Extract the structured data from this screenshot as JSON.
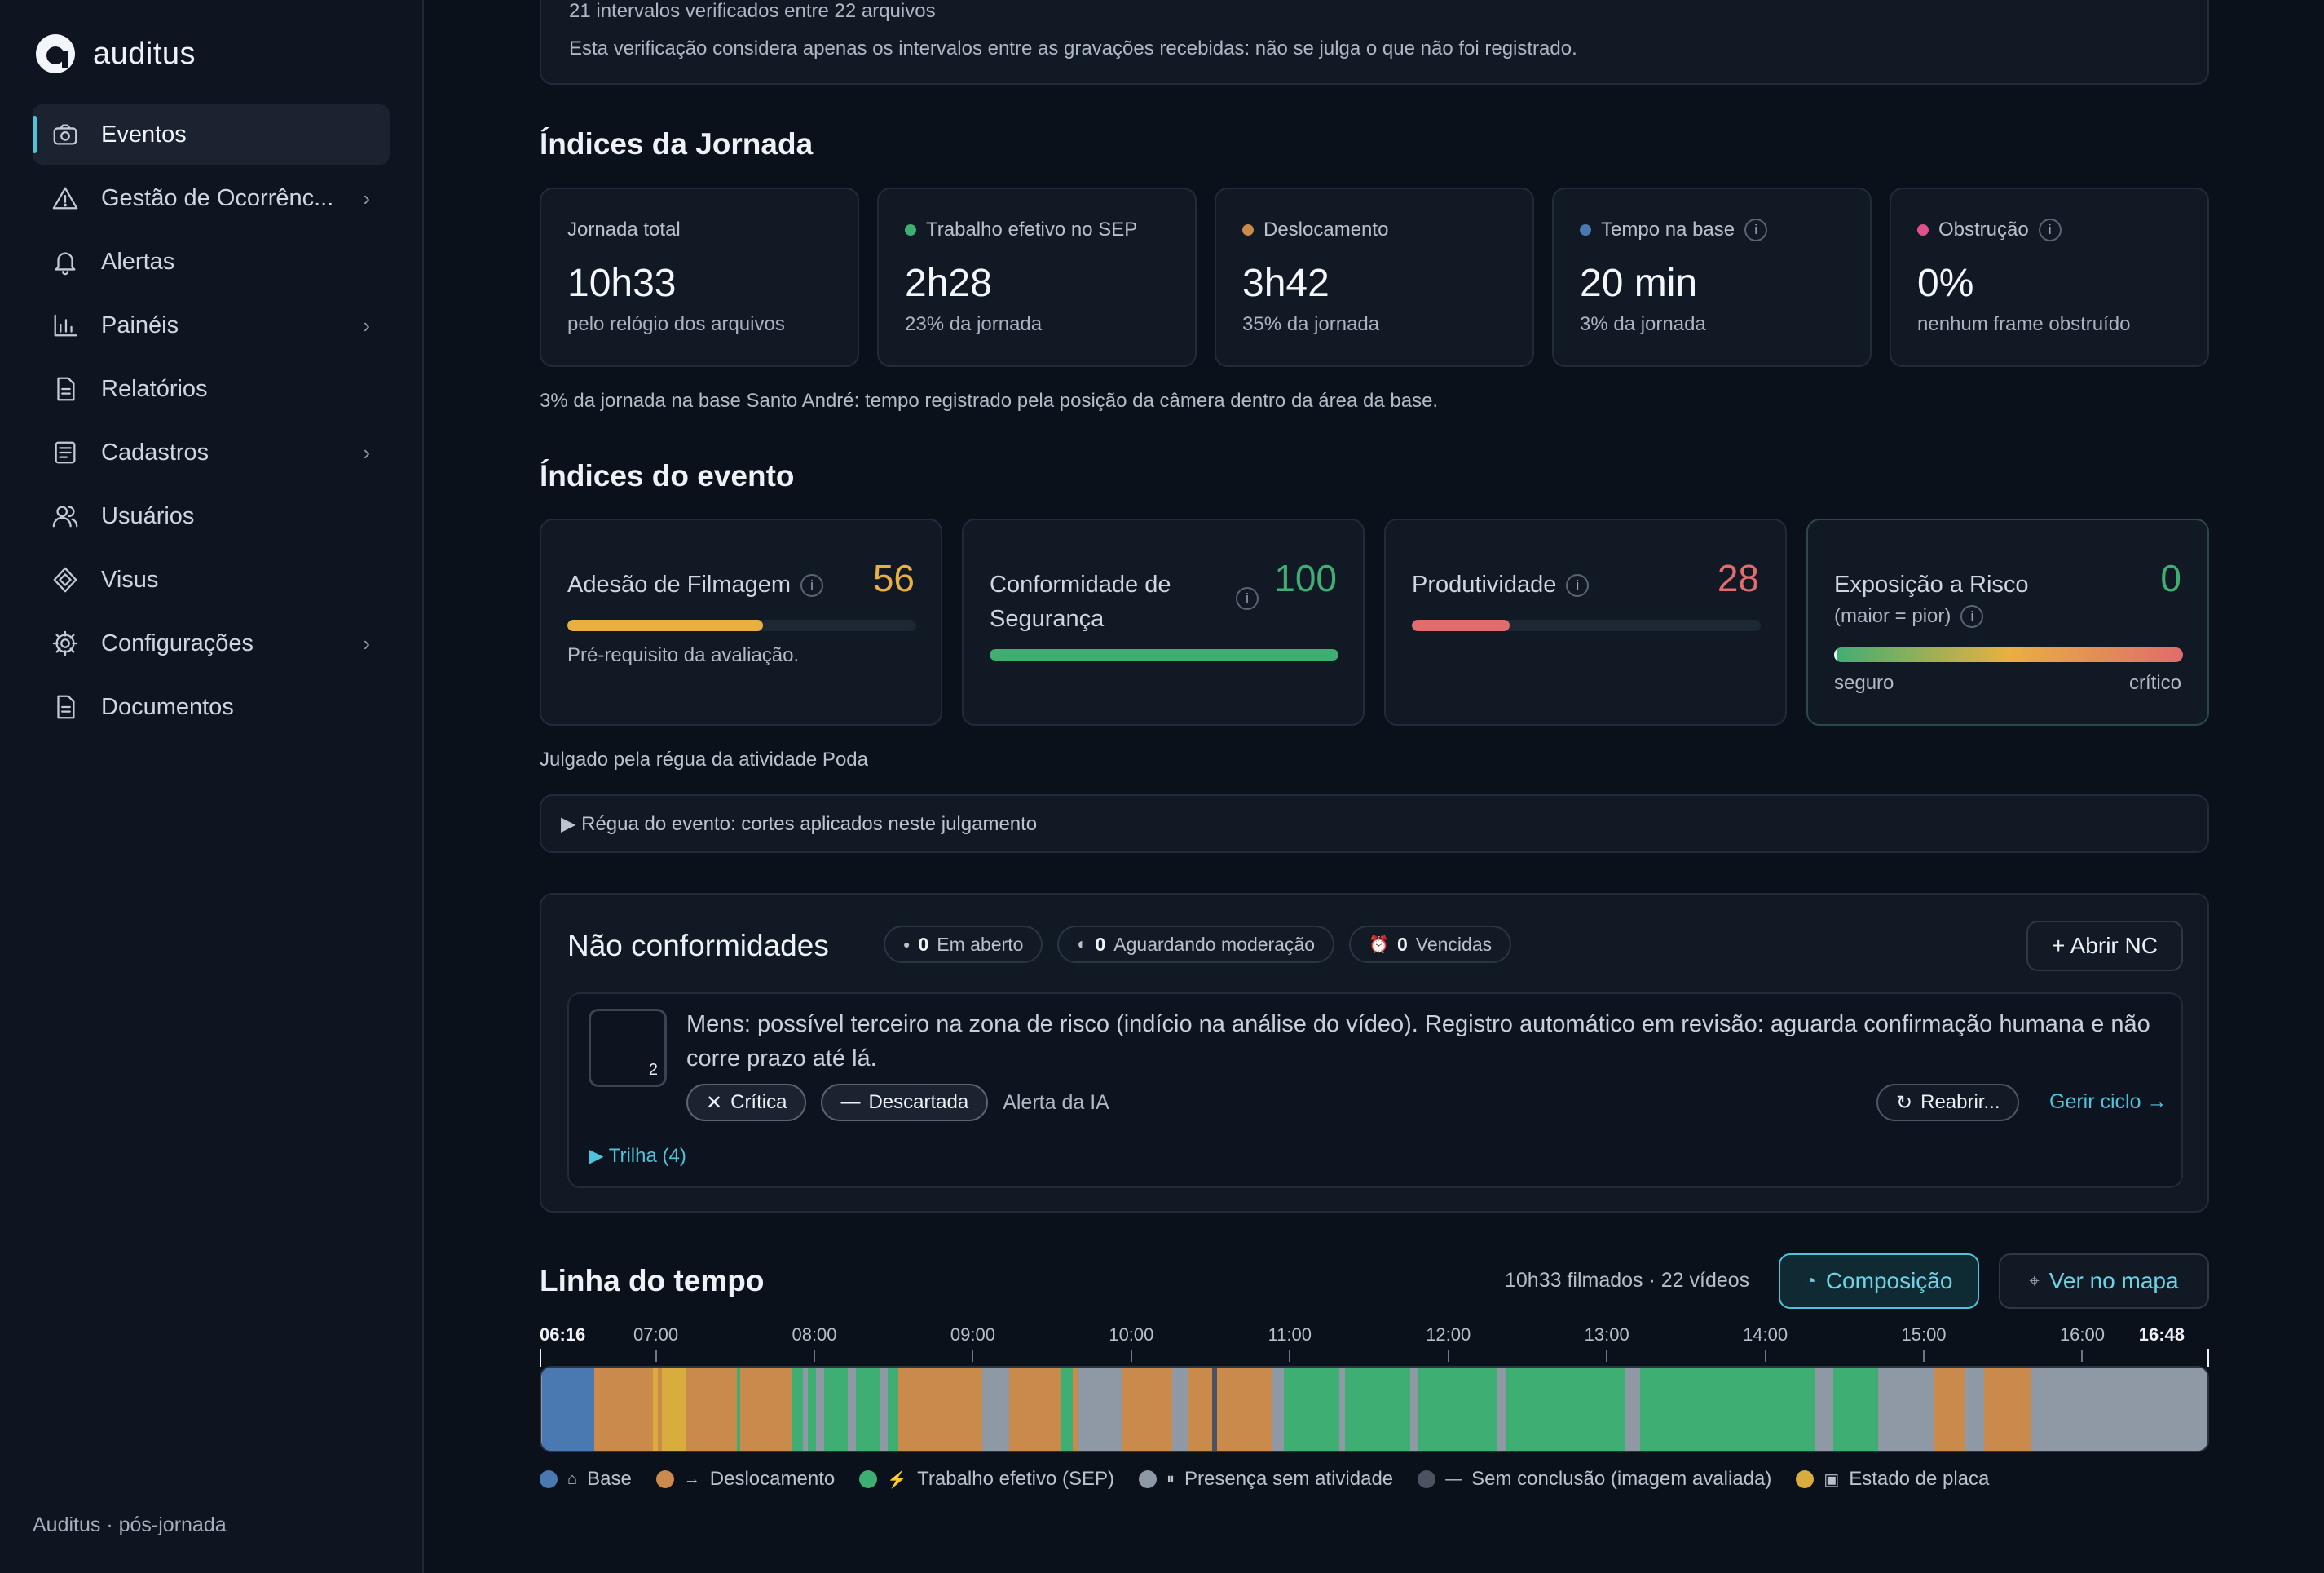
{
  "app": {
    "name": "auditus",
    "footer": "Auditus · pós-jornada"
  },
  "sidebar": {
    "items": [
      {
        "label": "Eventos",
        "icon": "camera-icon",
        "active": true,
        "chevron": false
      },
      {
        "label": "Gestão de Ocorrênc...",
        "icon": "warning-icon",
        "chevron": true
      },
      {
        "label": "Alertas",
        "icon": "bell-icon",
        "chevron": false
      },
      {
        "label": "Painéis",
        "icon": "bar-chart-icon",
        "chevron": true
      },
      {
        "label": "Relatórios",
        "icon": "document-icon",
        "chevron": false
      },
      {
        "label": "Cadastros",
        "icon": "list-icon",
        "chevron": true
      },
      {
        "label": "Usuários",
        "icon": "users-icon",
        "chevron": false
      },
      {
        "label": "Visus",
        "icon": "diamond-icon",
        "chevron": false
      },
      {
        "label": "Configurações",
        "icon": "gear-icon",
        "chevron": true
      },
      {
        "label": "Documentos",
        "icon": "document-icon",
        "chevron": false
      }
    ],
    "chevron_glyph": "›"
  },
  "verification": {
    "line1": "21 intervalos verificados entre 22 arquivos",
    "line2": "Esta verificação considera apenas os intervalos entre as gravações recebidas: não se julga o que não foi registrado."
  },
  "jornada": {
    "title": "Índices da Jornada",
    "cards": [
      {
        "label": "Jornada total",
        "value": "10h33",
        "sub": "pelo relógio dos arquivos",
        "dot": "",
        "info": false
      },
      {
        "label": "Trabalho efetivo no SEP",
        "value": "2h28",
        "sub": "23% da jornada",
        "dot": "#3fae73",
        "info": false
      },
      {
        "label": "Deslocamento",
        "value": "3h42",
        "sub": "35% da jornada",
        "dot": "#c98a4b",
        "info": false
      },
      {
        "label": "Tempo na base",
        "value": "20 min",
        "sub": "3% da jornada",
        "dot": "#4a78b0",
        "info": true
      },
      {
        "label": "Obstrução",
        "value": "0%",
        "sub": "nenhum frame obstruído",
        "dot": "#e0508a",
        "info": true
      }
    ],
    "note": "3% da jornada na base Santo André: tempo registrado pela posição da câmera dentro da área da base."
  },
  "evento": {
    "title": "Índices do evento",
    "cards": [
      {
        "label": "Adesão de Filmagem",
        "score": "56",
        "level": 0.56,
        "color": "#e8b040",
        "note": "Pré-requisito da avaliação."
      },
      {
        "label": "Conformidade de Segurança",
        "score": "100",
        "level": 1.0,
        "color": "#3fae73",
        "note": ""
      },
      {
        "label": "Produtividade",
        "score": "28",
        "level": 0.28,
        "color": "#e06c6c",
        "note": ""
      },
      {
        "label": "Exposição a Risco",
        "sublabel": "(maior = pior)",
        "score": "0",
        "level": 0,
        "color": "#3fae73",
        "scale_low": "seguro",
        "scale_high": "crítico"
      }
    ],
    "judged_by": "Julgado pela régua da atividade Poda",
    "regua": "▶ Régua do evento: cortes aplicados neste julgamento"
  },
  "nc": {
    "title": "Não conformidades",
    "badges": [
      {
        "count": "0",
        "label": "Em aberto",
        "icon": "dot-icon"
      },
      {
        "count": "0",
        "label": "Aguardando moderação",
        "icon": "half-circle-icon"
      },
      {
        "count": "0",
        "label": "Vencidas",
        "icon": "alarm-icon"
      }
    ],
    "open_button": "+ Abrir NC",
    "item": {
      "thumb_count": "2",
      "text": "Mens: possível terceiro na zona de risco (indício na análise do vídeo). Registro automático em revisão: aguarda confirmação humana e não corre prazo até lá.",
      "tag_severity": "Crítica",
      "tag_status": "Descartada",
      "source": "Alerta da IA",
      "reopen": "Reabrir...",
      "manage": "Gerir ciclo →",
      "trail": "▶ Trilha (4)"
    }
  },
  "timeline": {
    "title": "Linha do tempo",
    "summary": "10h33 filmados · 22 vídeos",
    "composition_button": "Composição",
    "map_button": "Ver no mapa",
    "start": "06:16",
    "end": "16:48",
    "ticks": [
      "07:00",
      "08:00",
      "09:00",
      "10:00",
      "11:00",
      "12:00",
      "13:00",
      "14:00",
      "15:00",
      "16:00"
    ],
    "colors": {
      "base": "#4a78b0",
      "desloc": "#c98a4b",
      "sep": "#3fae73",
      "idle": "#8f99a6",
      "none": "#4b5361",
      "plate": "#d8ad3e"
    },
    "segments": [
      [
        "base",
        6.27,
        6.6
      ],
      [
        "desloc",
        6.6,
        6.97
      ],
      [
        "plate",
        6.97,
        7.0
      ],
      [
        "desloc",
        7.0,
        7.03
      ],
      [
        "plate",
        7.03,
        7.18
      ],
      [
        "desloc",
        7.18,
        7.5
      ],
      [
        "sep",
        7.5,
        7.52
      ],
      [
        "desloc",
        7.52,
        7.85
      ],
      [
        "sep",
        7.85,
        7.92
      ],
      [
        "idle",
        7.92,
        7.95
      ],
      [
        "sep",
        7.95,
        8.0
      ],
      [
        "idle",
        8.0,
        8.05
      ],
      [
        "sep",
        8.05,
        8.2
      ],
      [
        "idle",
        8.2,
        8.25
      ],
      [
        "sep",
        8.25,
        8.4
      ],
      [
        "idle",
        8.4,
        8.45
      ],
      [
        "sep",
        8.45,
        8.52
      ],
      [
        "desloc",
        8.52,
        9.05
      ],
      [
        "idle",
        9.05,
        9.22
      ],
      [
        "desloc",
        9.22,
        9.55
      ],
      [
        "sep",
        9.55,
        9.62
      ],
      [
        "desloc",
        9.62,
        9.65
      ],
      [
        "idle",
        9.65,
        9.93
      ],
      [
        "desloc",
        9.93,
        10.25
      ],
      [
        "idle",
        10.25,
        10.35
      ],
      [
        "desloc",
        10.35,
        10.5
      ],
      [
        "none",
        10.5,
        10.53
      ],
      [
        "desloc",
        10.53,
        10.88
      ],
      [
        "idle",
        10.88,
        10.95
      ],
      [
        "sep",
        10.95,
        11.3
      ],
      [
        "idle",
        11.3,
        11.34
      ],
      [
        "sep",
        11.34,
        11.75
      ],
      [
        "idle",
        11.75,
        11.8
      ],
      [
        "sep",
        11.8,
        12.3
      ],
      [
        "idle",
        12.3,
        12.35
      ],
      [
        "sep",
        12.35,
        13.1
      ],
      [
        "idle",
        13.1,
        13.2
      ],
      [
        "sep",
        13.2,
        14.3
      ],
      [
        "idle",
        14.3,
        14.42
      ],
      [
        "sep",
        14.42,
        14.7
      ],
      [
        "idle",
        14.7,
        15.05
      ],
      [
        "desloc",
        15.05,
        15.25
      ],
      [
        "idle",
        15.25,
        15.37
      ],
      [
        "desloc",
        15.37,
        15.67
      ],
      [
        "idle",
        15.67,
        16.8
      ]
    ],
    "legend": [
      {
        "key": "base",
        "glyph": "⌂",
        "label": "Base"
      },
      {
        "key": "desloc",
        "glyph": "→",
        "label": "Deslocamento"
      },
      {
        "key": "sep",
        "glyph": "⚡",
        "label": "Trabalho efetivo (SEP)"
      },
      {
        "key": "idle",
        "glyph": "⏸",
        "label": "Presença sem atividade"
      },
      {
        "key": "none",
        "glyph": "—",
        "label": "Sem conclusão (imagem avaliada)"
      },
      {
        "key": "plate",
        "glyph": "▣",
        "label": "Estado de placa"
      }
    ]
  }
}
